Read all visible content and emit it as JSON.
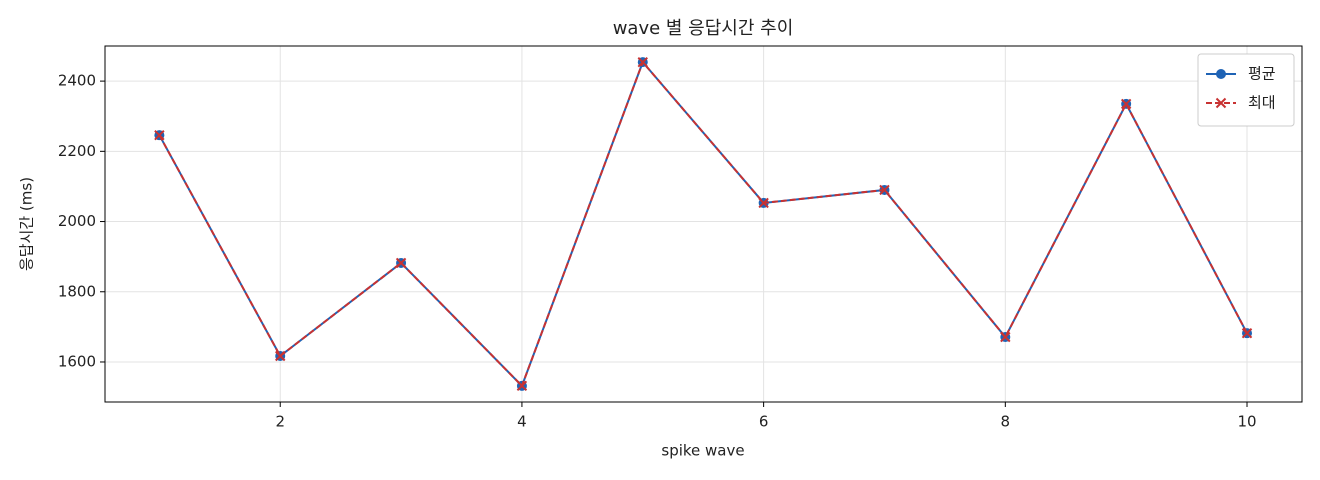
{
  "chart_data": {
    "type": "line",
    "title": "wave 별 응답시간 추이",
    "x_label": "spike wave",
    "y_label": "응답시간 (ms)",
    "x": [
      1,
      2,
      3,
      4,
      5,
      6,
      7,
      8,
      9,
      10
    ],
    "series": [
      {
        "name": "평균",
        "color": "#1f63b5",
        "line_style": "solid",
        "marker": "circle",
        "values": [
          2246,
          1617,
          1882,
          1532,
          2454,
          2053,
          2090,
          1671,
          2335,
          1682
        ]
      },
      {
        "name": "최대",
        "color": "#c83232",
        "line_style": "dashed",
        "marker": "x",
        "values": [
          2246,
          1617,
          1882,
          1532,
          2454,
          2053,
          2090,
          1671,
          2335,
          1682
        ]
      }
    ],
    "xlim": [
      0.55,
      10.455
    ],
    "ylim": [
      1486,
      2500
    ],
    "xticks": [
      2,
      4,
      6,
      8,
      10
    ],
    "yticks": [
      1600,
      1800,
      2000,
      2200,
      2400
    ],
    "grid": true,
    "legend": "upper-right"
  }
}
